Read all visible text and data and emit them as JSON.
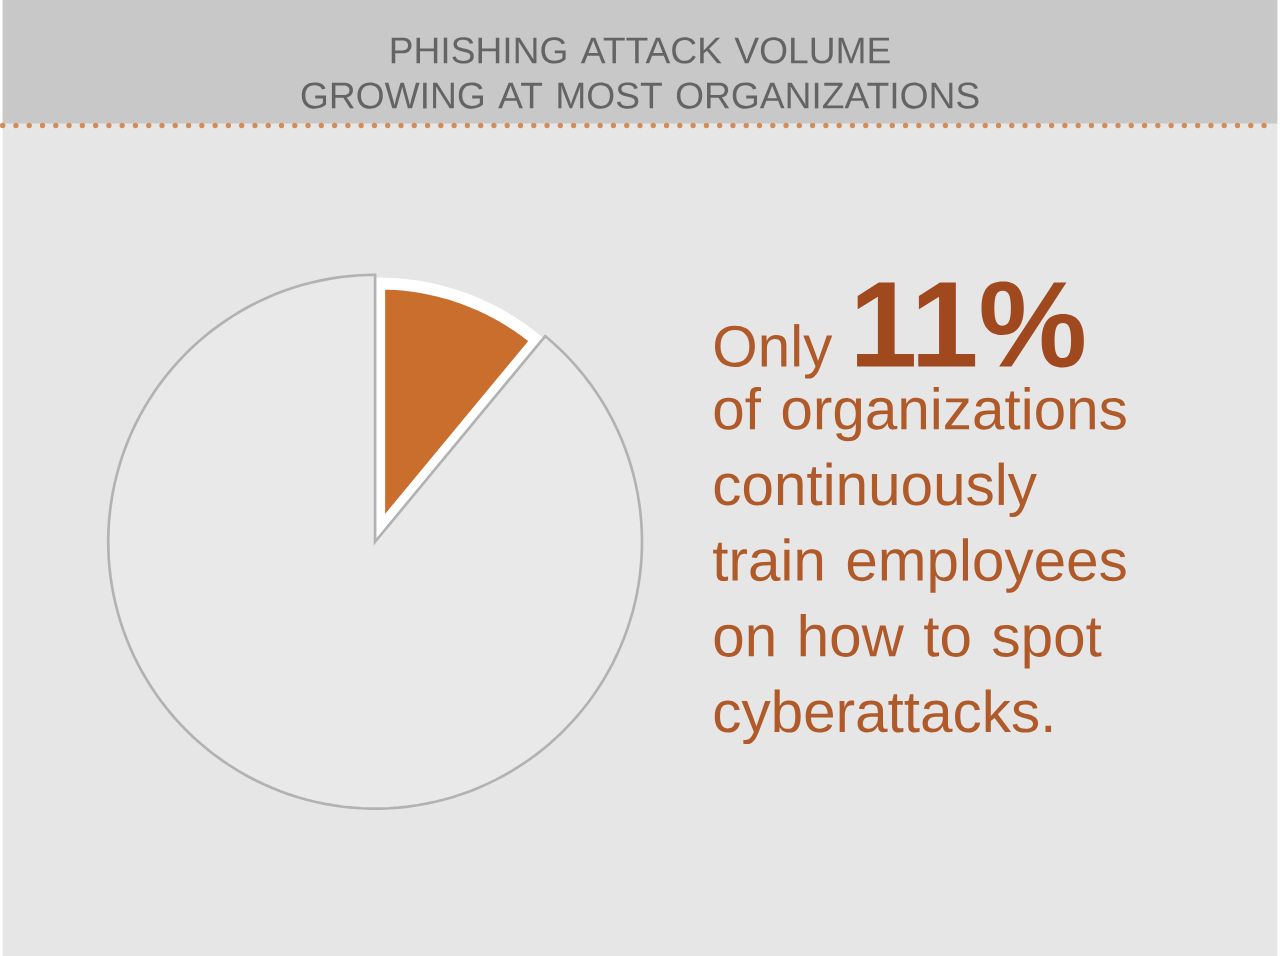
{
  "chart_data": {
    "type": "pie",
    "title": "PHISHING ATTACK VOLUME GROWING AT MOST ORGANIZATIONS",
    "categories": [
      null,
      null
    ],
    "values": [
      11,
      89
    ],
    "colors": [
      "#c96e2c",
      "#e9e9ea"
    ],
    "annotations": [
      "Only",
      "11%",
      "of organizations continuously train employees on how to spot cyberattacks."
    ]
  }
}
